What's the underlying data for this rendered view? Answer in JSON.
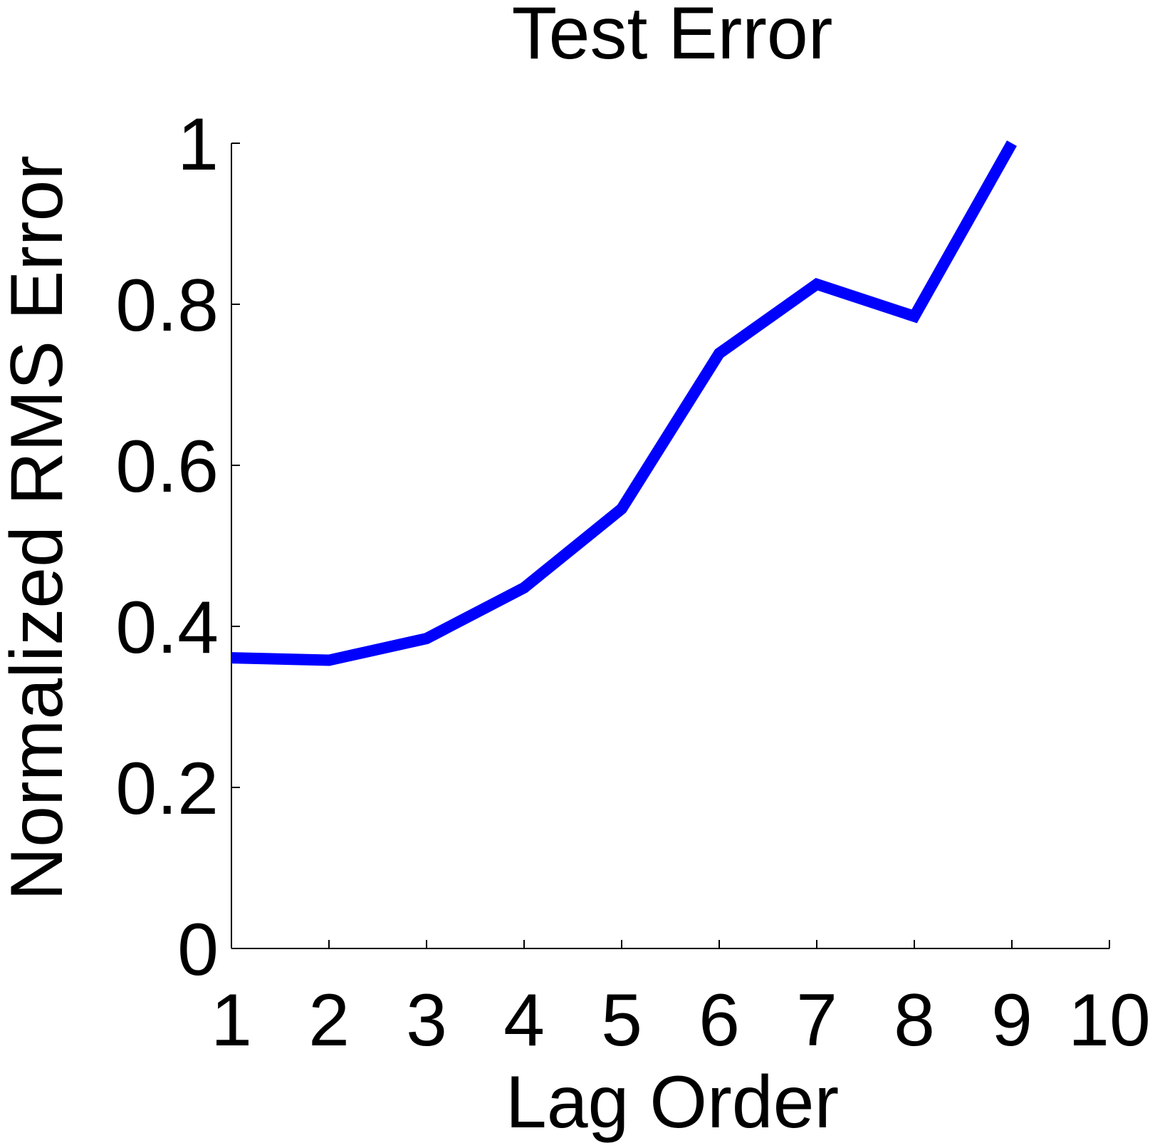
{
  "chart_data": {
    "type": "line",
    "title": "Test Error",
    "xlabel": "Lag Order",
    "ylabel": "Normalized RMS Error",
    "x": [
      1,
      2,
      3,
      4,
      5,
      6,
      7,
      8,
      9
    ],
    "xlim": [
      1,
      10
    ],
    "ylim": [
      0,
      1
    ],
    "xticks": [
      1,
      2,
      3,
      4,
      5,
      6,
      7,
      8,
      9,
      10
    ],
    "xtick_labels": [
      "1",
      "2",
      "3",
      "4",
      "5",
      "6",
      "7",
      "8",
      "9",
      "10"
    ],
    "yticks": [
      0,
      0.2,
      0.4,
      0.6,
      0.8,
      1
    ],
    "ytick_labels": [
      "0",
      "0.2",
      "0.4",
      "0.6",
      "0.8",
      "1"
    ],
    "grid": false,
    "series": [
      {
        "values": [
          0.361,
          0.358,
          0.385,
          0.448,
          0.546,
          0.739,
          0.825,
          0.785,
          1.0
        ],
        "color": "#0000ff"
      }
    ]
  }
}
